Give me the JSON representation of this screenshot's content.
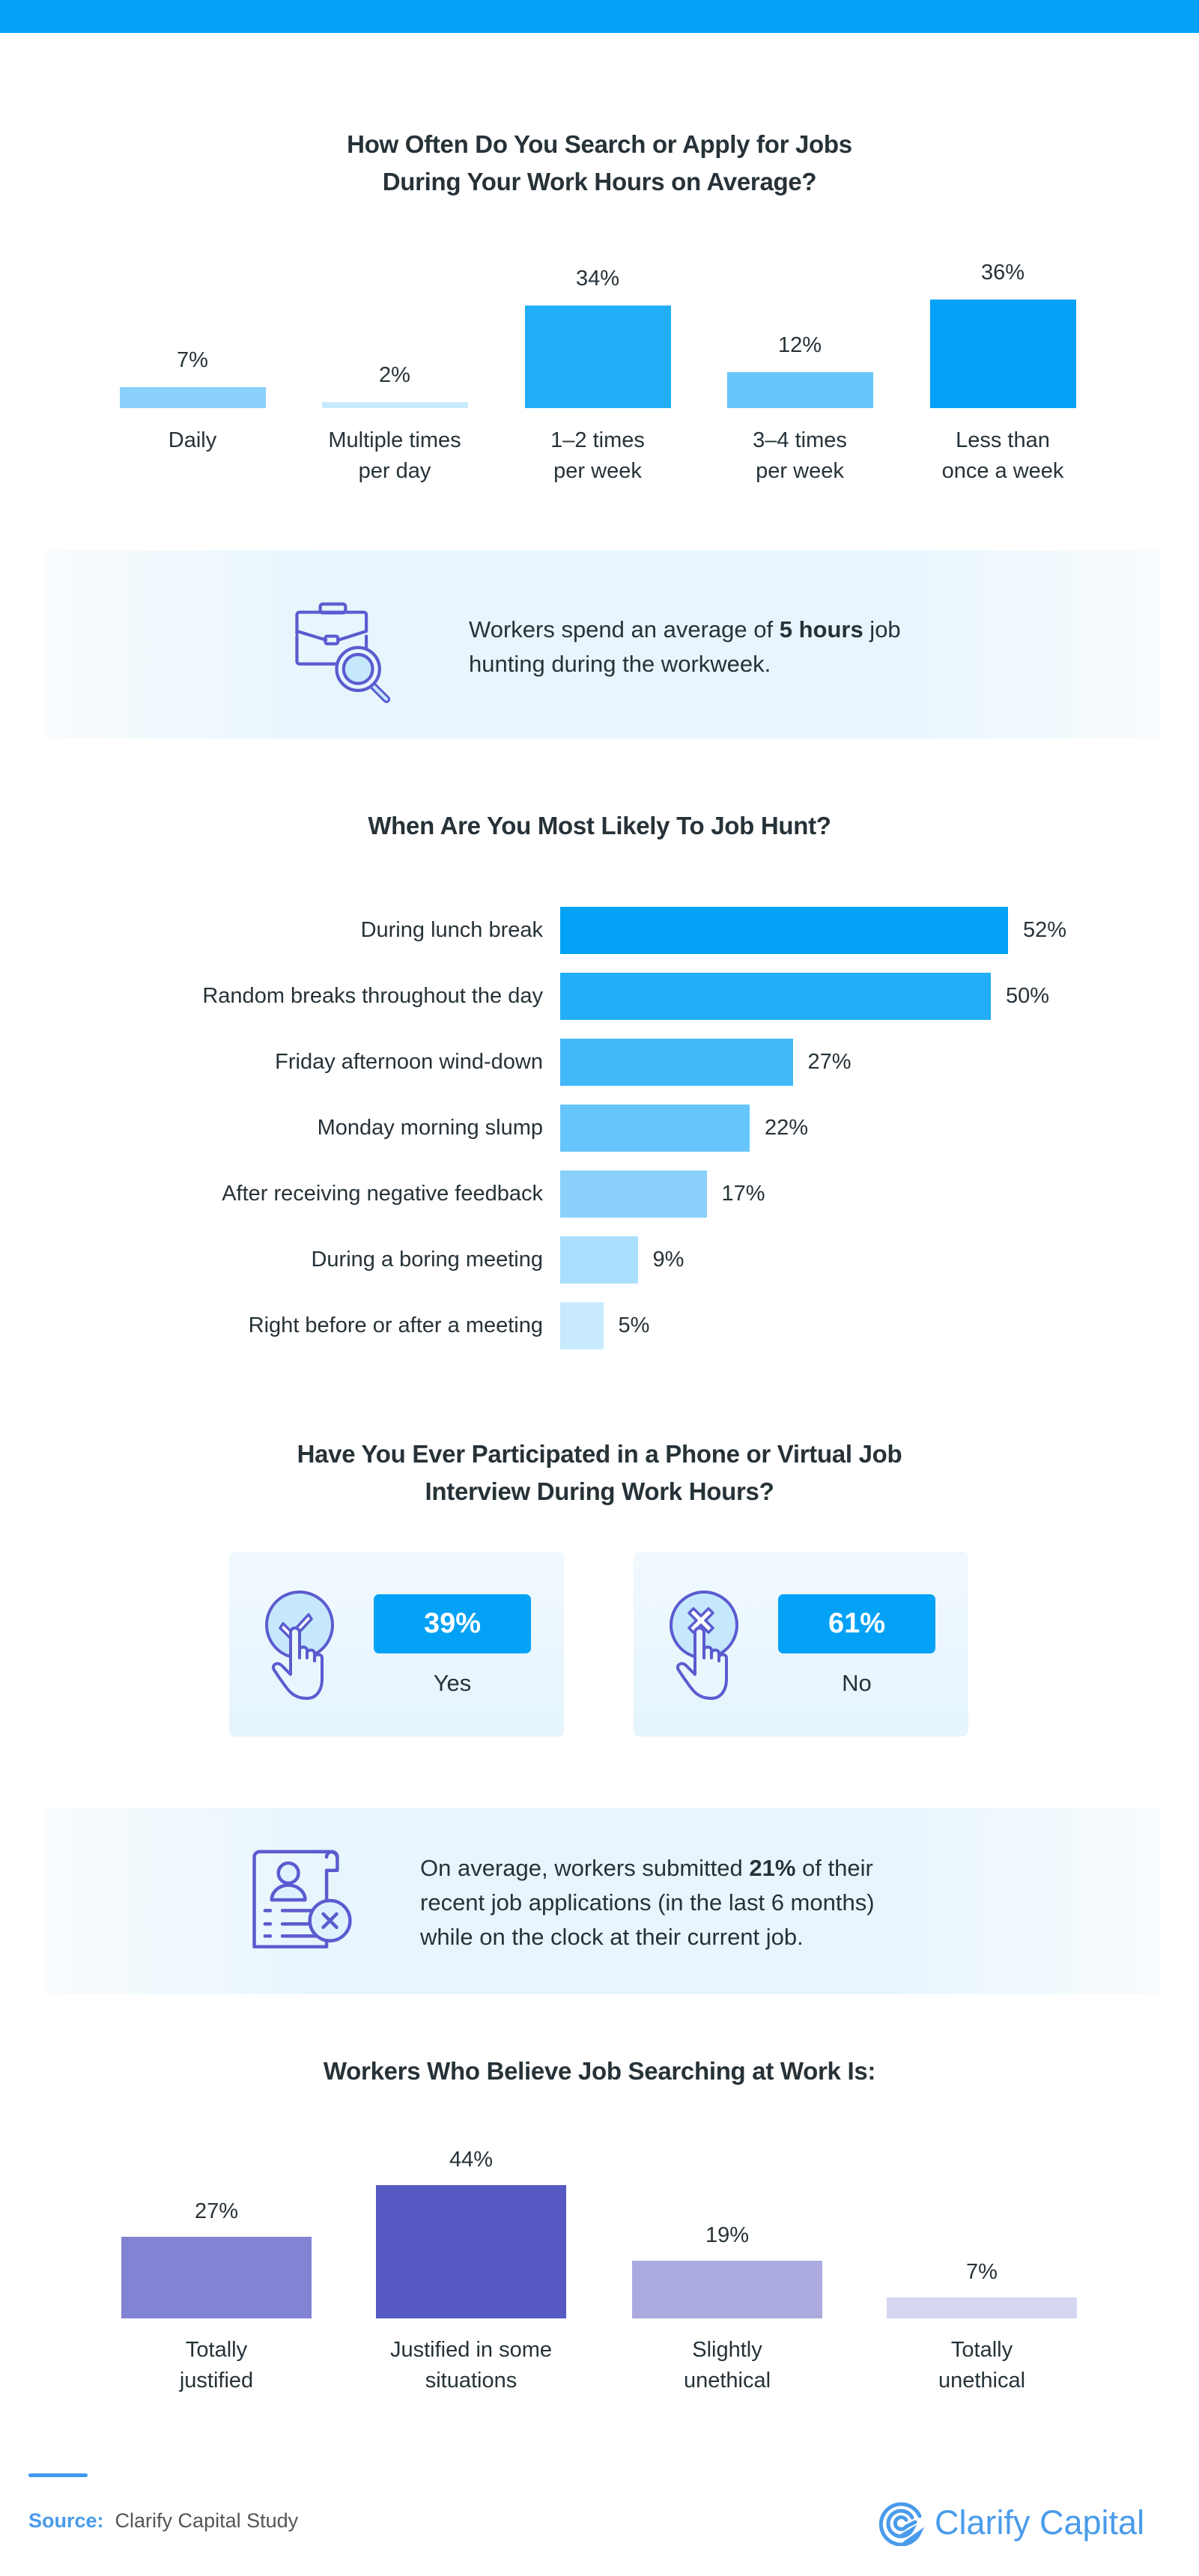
{
  "colors": {
    "accent": "#03A2F7",
    "icon_stroke": "#5B5BD0",
    "icon_fill": "#C5E8FD",
    "brand": "#4A9BEA"
  },
  "chart_data": [
    {
      "type": "bar",
      "title": "How Often Do You Search or Apply for Jobs\nDuring Your Work Hours on Average?",
      "categories": [
        "Daily",
        "Multiple times\nper day",
        "1–2 times\nper week",
        "3–4 times\nper week",
        "Less than\nonce a week"
      ],
      "values": [
        7,
        2,
        34,
        12,
        36
      ],
      "labels": [
        "7%",
        "2%",
        "34%",
        "12%",
        "36%"
      ],
      "colors": [
        "#89D0FB",
        "#C8EAFD",
        "#21AEF6",
        "#66C6FB",
        "#03A2F7"
      ],
      "ylim": [
        0,
        40
      ],
      "grid": false
    },
    {
      "type": "bar",
      "orientation": "horizontal",
      "title": "When Are You Most Likely To Job Hunt?",
      "categories": [
        "During lunch break",
        "Random breaks throughout the day",
        "Friday afternoon wind-down",
        "Monday morning slump",
        "After receiving negative feedback",
        "During a boring meeting",
        "Right before or after a meeting"
      ],
      "values": [
        52,
        50,
        27,
        22,
        17,
        9,
        5
      ],
      "labels": [
        "52%",
        "50%",
        "27%",
        "22%",
        "17%",
        "9%",
        "5%"
      ],
      "colors": [
        "#03A2F7",
        "#21AEF6",
        "#43B8F9",
        "#66C6FB",
        "#89D0FB",
        "#A9DEFC",
        "#C8EAFD"
      ],
      "xlim": [
        0,
        60
      ],
      "grid": false
    },
    {
      "type": "bar",
      "title": "Have You Ever Participated in a Phone or Virtual Job\nInterview During Work Hours?",
      "categories": [
        "Yes",
        "No"
      ],
      "values": [
        39,
        61
      ],
      "labels": [
        "39%",
        "61%"
      ]
    },
    {
      "type": "bar",
      "title": "Workers Who Believe Job Searching at Work Is:",
      "categories": [
        "Totally\njustified",
        "Justified in some\nsituations",
        "Slightly\nunethical",
        "Totally\nunethical"
      ],
      "values": [
        27,
        44,
        19,
        7
      ],
      "labels": [
        "27%",
        "44%",
        "19%",
        "7%"
      ],
      "colors": [
        "#8383D5",
        "#5559C1",
        "#ABABE0",
        "#D5D6F2"
      ],
      "ylim": [
        0,
        50
      ],
      "grid": false
    }
  ],
  "callout1": {
    "text_before": "Workers spend an average of ",
    "bold": "5 hours",
    "text_after": " job hunting during the workweek.",
    "icon": "briefcase-search-icon"
  },
  "interview": {
    "yes_icon": "check-tap-icon",
    "no_icon": "x-tap-icon"
  },
  "callout2": {
    "text_before": "On average, workers submitted ",
    "bold": "21%",
    "text_after": " of their recent job applications (in the last 6 months) while on the clock at their current job.",
    "icon": "resume-rejected-icon"
  },
  "footer": {
    "source_label": "Source:",
    "source_text": "Clarify Capital Study",
    "logo_text": "Clarify Capital"
  }
}
